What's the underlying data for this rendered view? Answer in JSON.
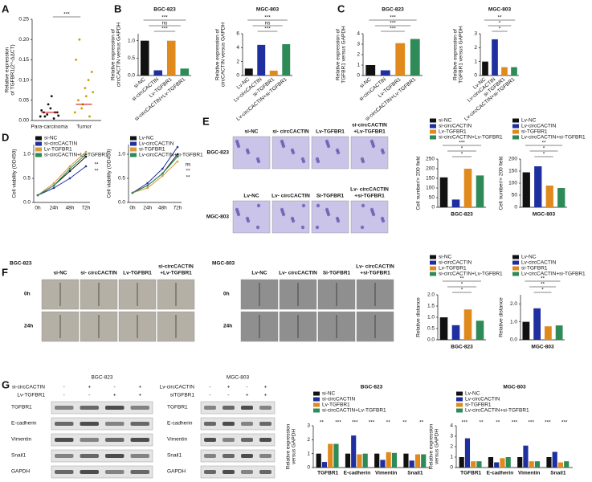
{
  "chart_data": [
    {
      "type": "strip",
      "ylabel": [
        "Relative expression",
        "of TGFBR1(2^-ΔΔCT)"
      ],
      "categories": [
        "Para-carcinoma",
        "Tumor"
      ],
      "values": [
        [
          0.01,
          0.02,
          0.015,
          0.03,
          0.005,
          0.02,
          0.025,
          0.01,
          0.04,
          0.06,
          0.02,
          0.012
        ],
        [
          0.02,
          0.05,
          0.03,
          0.08,
          0.1,
          0.12,
          0.15,
          0.2,
          0.04,
          0.06,
          0.01,
          0.07
        ]
      ],
      "means": [
        0.02,
        0.04
      ],
      "colors": [
        "#111111",
        "#c8a000"
      ],
      "ylim": [
        0,
        0.25
      ],
      "yticks": [
        {
          "value": 0,
          "label": "0.00"
        },
        0.05,
        {
          "value": 0.1,
          "label": "0.10"
        },
        0.15,
        {
          "value": 0.2,
          "label": "0.20"
        },
        0.25
      ],
      "annotations": [
        "***"
      ]
    },
    {
      "type": "bar",
      "title": "BGC-823",
      "ylabel": [
        "Relative expression of",
        "circCACTIN versus GAPDH"
      ],
      "categories": [
        "si-NC",
        "si-circCACTIN",
        "Lv-TGFBR1",
        "si-circCACTIN+Lv-TGFBR1"
      ],
      "values": [
        1.0,
        0.15,
        1.0,
        0.2
      ],
      "colors": [
        "#111111",
        "#1f2f9f",
        "#e08a1e",
        "#2e8b57"
      ],
      "ylim": [
        0,
        1.2
      ],
      "yticks": [
        {
          "value": 0,
          "label": "0.0"
        },
        0.5,
        {
          "value": 1,
          "label": "1.0"
        }
      ],
      "annotations": [
        "***",
        "ns",
        "***"
      ]
    },
    {
      "type": "bar",
      "title": "MGC-803",
      "ylabel": [
        "Relative expression of",
        "circCACTIN versus GAPDH"
      ],
      "categories": [
        "Lv-NC",
        "Lv-circCACTIN",
        "si-TGFBR1",
        "Lv-circCACTIN+si-TGFBR1"
      ],
      "values": [
        1.0,
        4.4,
        0.7,
        4.5
      ],
      "colors": [
        "#111111",
        "#1f2f9f",
        "#e08a1e",
        "#2e8b57"
      ],
      "ylim": [
        0,
        6
      ],
      "yticks": [
        0,
        2,
        4,
        6
      ],
      "annotations": [
        "***",
        "ns",
        "***"
      ]
    },
    {
      "type": "bar",
      "title": "BGC-823",
      "ylabel": [
        "Relative expression of",
        "TGFBR1 versus GAPDH"
      ],
      "categories": [
        "si-NC",
        "si-circCACTIN",
        "Lv-TGFBR1",
        "si-circCACTIN+Lv-TGFBR1"
      ],
      "values": [
        1.0,
        0.5,
        3.1,
        3.5
      ],
      "colors": [
        "#111111",
        "#1f2f9f",
        "#e08a1e",
        "#2e8b57"
      ],
      "ylim": [
        0,
        4
      ],
      "yticks": [
        0,
        1,
        2,
        3,
        4
      ],
      "annotations": [
        "***",
        "***",
        "***"
      ]
    },
    {
      "type": "bar",
      "title": "MGC-803",
      "ylabel": [
        "Relative expression of",
        "TGFBR1 versus GAPDH"
      ],
      "categories": [
        "Lv-NC",
        "Lv-circCACTIN",
        "si-TGFBR1",
        "Lv-circCACTIN+si-TGFBR1"
      ],
      "values": [
        1.0,
        2.6,
        0.6,
        0.6
      ],
      "colors": [
        "#111111",
        "#1f2f9f",
        "#e08a1e",
        "#2e8b57"
      ],
      "ylim": [
        0,
        3
      ],
      "yticks": [
        0,
        1,
        2,
        3
      ],
      "annotations": [
        "*",
        "*",
        "**"
      ]
    },
    {
      "type": "line",
      "ylabel": [
        "Cell viability (OD450)"
      ],
      "categories": [
        "0h",
        "24h",
        "48h",
        "72h"
      ],
      "series": [
        {
          "name": "si-NC",
          "color": "#111111",
          "values": [
            0.15,
            0.35,
            0.65,
            0.95
          ]
        },
        {
          "name": "si-circCACTIN",
          "color": "#1f2f9f",
          "values": [
            0.15,
            0.3,
            0.5,
            0.75
          ]
        },
        {
          "name": "Lv-TGFBR1",
          "color": "#d89a3a",
          "values": [
            0.15,
            0.4,
            0.75,
            1.05
          ]
        },
        {
          "name": "si-circCACTIN+Lv-TGFBR1",
          "color": "#2e8b57",
          "values": [
            0.15,
            0.35,
            0.7,
            1.0
          ]
        }
      ],
      "ylim": [
        0,
        1.2
      ],
      "yticks": [
        {
          "value": 0,
          "label": "0.0"
        },
        0.5,
        {
          "value": 1,
          "label": "1.0"
        }
      ],
      "annotations": [
        "**",
        "**"
      ]
    },
    {
      "type": "line",
      "ylabel": [
        "Cell viability (OD450)"
      ],
      "categories": [
        "0h",
        "24h",
        "48h",
        "72h"
      ],
      "series": [
        {
          "name": "Lv-NC",
          "color": "#111111",
          "values": [
            0.2,
            0.35,
            0.6,
            1.0
          ]
        },
        {
          "name": "Lv-circCACTIN",
          "color": "#1f2f9f",
          "values": [
            0.2,
            0.4,
            0.7,
            1.15
          ]
        },
        {
          "name": "si-TGFBR1",
          "color": "#d89a3a",
          "values": [
            0.2,
            0.3,
            0.55,
            0.85
          ]
        },
        {
          "name": "Lv-circCACTIN+si-TGFBR1",
          "color": "#2e8b57",
          "values": [
            0.2,
            0.35,
            0.6,
            0.95
          ]
        }
      ],
      "ylim": [
        0,
        1.2
      ],
      "yticks": [
        {
          "value": 0,
          "label": "0.0"
        },
        0.5,
        {
          "value": 1,
          "label": "1.0"
        }
      ],
      "annotations": [
        "ns",
        "**",
        "**"
      ]
    },
    {
      "type": "bar",
      "legend": true,
      "xlabel": "BGC-823",
      "ylabel": [
        "Cell number/× 200 field"
      ],
      "categories": [
        "si-NC",
        "si-circCACTIN",
        "Lv-TGFBR1",
        "si-circCACTIN+Lv-TGFBR1"
      ],
      "values": [
        155,
        40,
        200,
        165
      ],
      "colors": [
        "#111111",
        "#1f2f9f",
        "#e08a1e",
        "#2e8b57"
      ],
      "ylim": [
        0,
        250
      ],
      "yticks": [
        0,
        50,
        100,
        150,
        200,
        250
      ],
      "annotations": [
        "*",
        "*",
        "***"
      ]
    },
    {
      "type": "bar",
      "legend": true,
      "xlabel": "MGC-803",
      "ylabel": [
        "Cell number/× 200 field"
      ],
      "categories": [
        "Lv-NC",
        "Lv-circCACTIN",
        "si-TGFBR1",
        "Lv-circCACTIN+si-TGFBR1"
      ],
      "values": [
        145,
        170,
        90,
        80
      ],
      "colors": [
        "#111111",
        "#1f2f9f",
        "#e08a1e",
        "#2e8b57"
      ],
      "ylim": [
        0,
        200
      ],
      "yticks": [
        0,
        50,
        100,
        150,
        200
      ],
      "annotations": [
        "*",
        "*",
        "**"
      ]
    },
    {
      "type": "bar",
      "legend": true,
      "xlabel": "BGC-823",
      "ylabel": [
        "Relative distance"
      ],
      "categories": [
        "si-NC",
        "si-circCACTIN",
        "Lv-TGFBR1",
        "si-circCACTIN+Lv-TGFBR1"
      ],
      "values": [
        1.0,
        0.65,
        1.35,
        0.85
      ],
      "colors": [
        "#111111",
        "#1f2f9f",
        "#e08a1e",
        "#2e8b57"
      ],
      "ylim": [
        0,
        2
      ],
      "yticks": [
        {
          "value": 0,
          "label": "0.0"
        },
        0.5,
        {
          "value": 1,
          "label": "1.0"
        },
        1.5,
        {
          "value": 2,
          "label": "2.0"
        }
      ],
      "annotations": [
        "*",
        "*",
        "**"
      ]
    },
    {
      "type": "bar",
      "legend": true,
      "xlabel": "MGC-803",
      "ylabel": [
        "Relative distance"
      ],
      "categories": [
        "Lv-NC",
        "Lv-circCACTIN",
        "si-TGFBR1",
        "Lv-circCACTIN+si-TGFBR1"
      ],
      "values": [
        1.0,
        1.75,
        0.75,
        0.8
      ],
      "colors": [
        "#111111",
        "#1f2f9f",
        "#e08a1e",
        "#2e8b57"
      ],
      "ylim": [
        0,
        2.5
      ],
      "yticks": [
        {
          "value": 0,
          "label": "0.0"
        },
        {
          "value": 1,
          "label": "1.0"
        },
        {
          "value": 2,
          "label": "2.0"
        }
      ],
      "annotations": [
        "*",
        "**",
        "**"
      ]
    },
    {
      "type": "bar",
      "title": "BGC-823",
      "ylabel": [
        "Relative expression",
        "versus GAPDH"
      ],
      "categories": [
        "TGFBR1",
        "E-cadherin",
        "Vimentin",
        "Snail1"
      ],
      "series": [
        {
          "name": "si-NC",
          "color": "#111111",
          "values": [
            1,
            1,
            1,
            1
          ]
        },
        {
          "name": "si-circCACTIN",
          "color": "#1f2f9f",
          "values": [
            0.4,
            2.3,
            0.55,
            0.5
          ]
        },
        {
          "name": "Lv-TGFBR1",
          "color": "#e08a1e",
          "values": [
            1.7,
            0.95,
            1.1,
            0.95
          ]
        },
        {
          "name": "si-circCACTIN+Lv-TGFBR1",
          "color": "#2e8b57",
          "values": [
            1.7,
            1.0,
            1.05,
            0.95
          ]
        }
      ],
      "ylim": [
        0,
        3
      ],
      "yticks": [
        0,
        1,
        2,
        3
      ],
      "annotations": [
        "**",
        "***",
        "***",
        "***",
        "**",
        "**",
        "**"
      ]
    },
    {
      "type": "bar",
      "title": "MGC-803",
      "ylabel": [
        "Relative expression",
        "versus GAPDH"
      ],
      "categories": [
        "TGFBR1",
        "E-cadherin",
        "Vimentin",
        "Snail1"
      ],
      "series": [
        {
          "name": "Lv-NC",
          "color": "#111111",
          "values": [
            1,
            1,
            1,
            1
          ]
        },
        {
          "name": "Lv-circCACTIN",
          "color": "#1f2f9f",
          "values": [
            2.8,
            0.5,
            2.1,
            1.5
          ]
        },
        {
          "name": "si-TGFBR1",
          "color": "#e08a1e",
          "values": [
            0.6,
            0.9,
            0.6,
            0.5
          ]
        },
        {
          "name": "Lv-circCACTIN+si-TGFBR1",
          "color": "#2e8b57",
          "values": [
            0.6,
            1.0,
            0.6,
            0.6
          ]
        }
      ],
      "ylim": [
        0,
        4
      ],
      "yticks": [
        0,
        1,
        2,
        3,
        4
      ],
      "annotations": [
        "***",
        "**",
        "**",
        "***",
        "***",
        "***",
        "***"
      ]
    }
  ],
  "figure": {
    "letters": [
      "A",
      "B",
      "C",
      "D",
      "E",
      "F",
      "G"
    ],
    "E": {
      "rows": [
        "BGC-823",
        "MGC-803"
      ],
      "top": [
        [
          "si-NC"
        ],
        [
          "si- circCACTIN"
        ],
        [
          "Lv-TGFBR1"
        ],
        [
          "si-circCACTIN",
          "+Lv-TGFBR1"
        ]
      ],
      "bottom": [
        [
          "Lv-NC"
        ],
        [
          "Lv- circCACTIN"
        ],
        [
          "Si-TGFBR1"
        ],
        [
          "Lv- circCACTIN",
          "+si-TGFBR1"
        ]
      ]
    },
    "F": {
      "left": {
        "title": "BGC-823",
        "rows": [
          "0h",
          "24h"
        ],
        "cols": [
          [
            "si-NC"
          ],
          [
            "si- circCACTIN"
          ],
          [
            "Lv-TGFBR1"
          ],
          [
            "si-circCACTIN",
            "+Lv-TGFBR1"
          ]
        ]
      },
      "right": {
        "title": "MGC-803",
        "rows": [
          "0h",
          "24h"
        ],
        "cols": [
          [
            "Lv-NC"
          ],
          [
            "Lv- circCACTIN"
          ],
          [
            "Si-TGFBR1"
          ],
          [
            "Lv- circCACTIN",
            "+si-TGFBR1"
          ]
        ]
      }
    },
    "G": {
      "left": {
        "title": "BGC-823",
        "conds": [
          {
            "label": "si-circCACTIN",
            "signs": [
              "-",
              "+",
              "-",
              "+"
            ]
          },
          {
            "label": "Lv-TGFBR1",
            "signs": [
              "-",
              "-",
              "+",
              "+"
            ]
          }
        ],
        "proteins": [
          "TGFBR1",
          "E-cadherin",
          "Vimentin",
          "Snail1",
          "GAPDH"
        ]
      },
      "right": {
        "title": "MGC-803",
        "conds": [
          {
            "label": "Lv-circCACTIN",
            "signs": [
              "-",
              "+",
              "-",
              "+"
            ]
          },
          {
            "label": "siTGFBR1",
            "signs": [
              "-",
              "-",
              "+",
              "+"
            ]
          }
        ],
        "proteins": [
          "TGFBR1",
          "E-cadherin",
          "Vimentin",
          "Snail1",
          "GAPDH"
        ]
      }
    }
  }
}
